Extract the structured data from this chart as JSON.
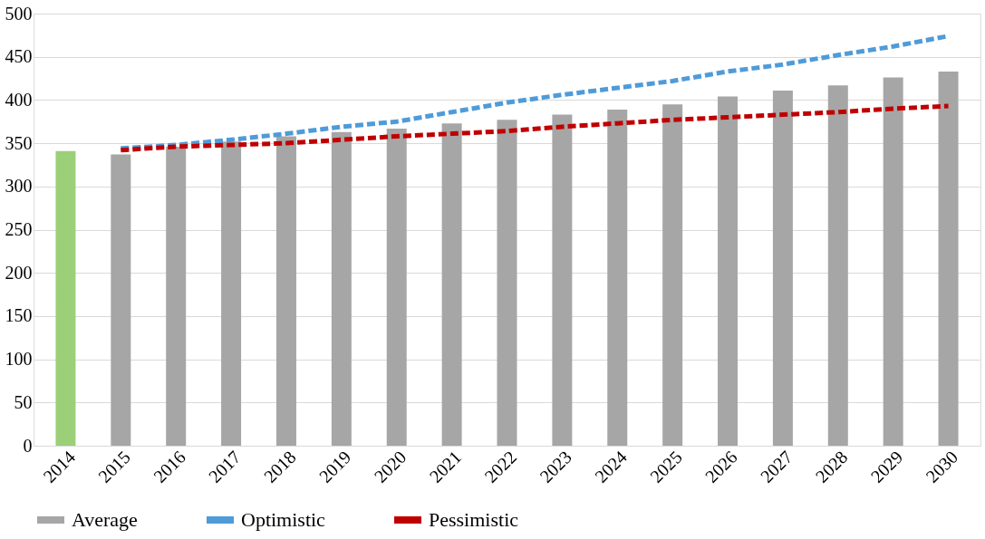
{
  "chart_data": {
    "type": "bar",
    "categories": [
      "2014",
      "2015",
      "2016",
      "2017",
      "2018",
      "2019",
      "2020",
      "2021",
      "2022",
      "2023",
      "2024",
      "2025",
      "2026",
      "2027",
      "2028",
      "2029",
      "2030"
    ],
    "series": [
      {
        "name": "Average",
        "color": "#a6a6a6",
        "colors": [
          "#9bcf78",
          "#a6a6a6",
          "#a6a6a6",
          "#a6a6a6",
          "#a6a6a6",
          "#a6a6a6",
          "#a6a6a6",
          "#a6a6a6",
          "#a6a6a6",
          "#a6a6a6",
          "#a6a6a6",
          "#a6a6a6",
          "#a6a6a6",
          "#a6a6a6",
          "#a6a6a6",
          "#a6a6a6",
          "#a6a6a6"
        ],
        "values": [
          341,
          337,
          346,
          352,
          358,
          363,
          367,
          373,
          377,
          383,
          389,
          395,
          404,
          411,
          417,
          426,
          433
        ]
      },
      {
        "name": "Optimistic",
        "type": "line",
        "line_style": "dashed",
        "color": "#4f9bd9",
        "values": [
          null,
          344,
          348,
          354,
          361,
          369,
          375,
          386,
          397,
          406,
          414,
          422,
          433,
          441,
          452,
          462,
          474
        ]
      },
      {
        "name": "Pessimistic",
        "type": "line",
        "line_style": "dashed",
        "color": "#c00000",
        "values": [
          null,
          342,
          346,
          348,
          350,
          354,
          358,
          361,
          364,
          369,
          373,
          377,
          380,
          383,
          386,
          390,
          393
        ]
      }
    ],
    "ylim": [
      0,
      500
    ],
    "yticks": [
      0,
      50,
      100,
      150,
      200,
      250,
      300,
      350,
      400,
      450,
      500
    ],
    "grid": "y",
    "legend": "bottom"
  }
}
